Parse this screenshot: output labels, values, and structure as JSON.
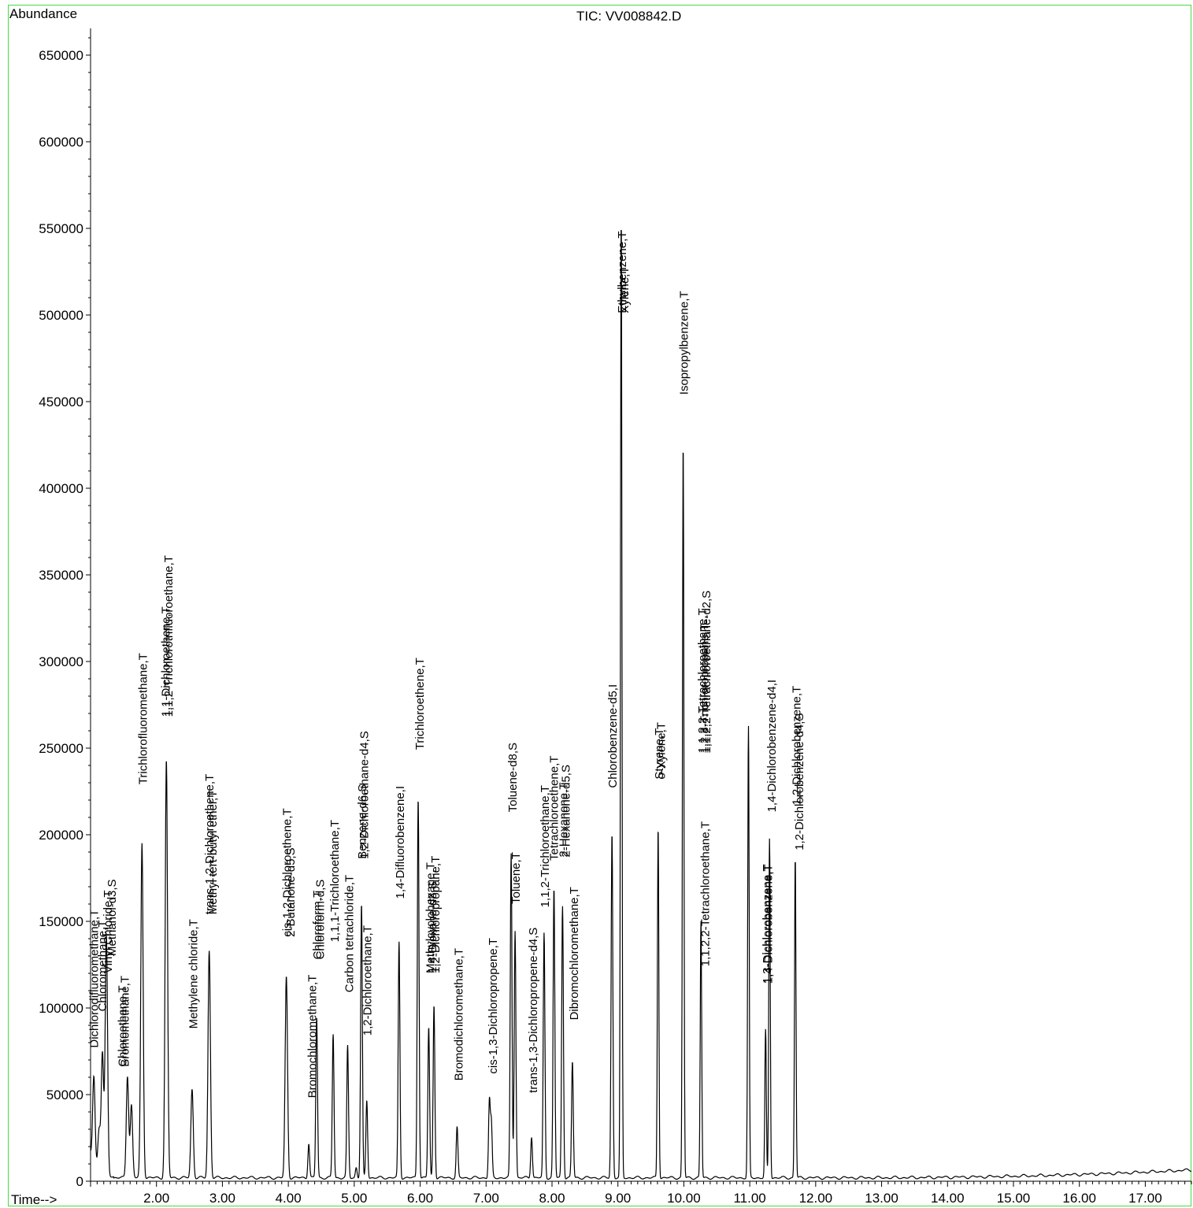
{
  "header": {
    "y_axis_label": "Abundance",
    "title": "TIC: VV008842.D",
    "x_axis_label": "Time-->"
  },
  "chart_data": {
    "type": "line",
    "title": "TIC: VV008842.D",
    "xlabel": "Time-->",
    "ylabel": "Abundance",
    "xlim": [
      1.0,
      17.7
    ],
    "ylim": [
      0,
      665000
    ],
    "grid": false,
    "legend": "none",
    "line_color": "#000000",
    "frame_color": "#44dd44",
    "y_ticks": [
      0,
      50000,
      100000,
      150000,
      200000,
      250000,
      300000,
      350000,
      400000,
      450000,
      500000,
      550000,
      600000,
      650000
    ],
    "y_tick_labels": [
      "0",
      "50000",
      "100000",
      "150000",
      "200000",
      "250000",
      "300000",
      "350000",
      "400000",
      "450000",
      "500000",
      "550000",
      "600000",
      "650000"
    ],
    "x_ticks": [
      2,
      3,
      4,
      5,
      6,
      7,
      8,
      9,
      10,
      11,
      12,
      13,
      14,
      15,
      16,
      17
    ],
    "x_tick_labels": [
      "2.00",
      "3.00",
      "4.00",
      "5.00",
      "6.00",
      "7.00",
      "8.00",
      "9.00",
      "10.00",
      "11.00",
      "12.00",
      "13.00",
      "14.00",
      "15.00",
      "16.00",
      "17.00"
    ],
    "peaks": [
      {
        "rt": 1.05,
        "height": 50000
      },
      {
        "rt": 1.13,
        "height": 23000
      },
      {
        "rt": 1.18,
        "height": 69000
      },
      {
        "rt": 1.24,
        "height": 137000
      },
      {
        "rt": 1.56,
        "height": 59000
      },
      {
        "rt": 1.62,
        "height": 42000
      },
      {
        "rt": 1.78,
        "height": 193000
      },
      {
        "rt": 2.15,
        "height": 241000
      },
      {
        "rt": 2.54,
        "height": 51000
      },
      {
        "rt": 2.8,
        "height": 131000
      },
      {
        "rt": 3.97,
        "height": 116000
      },
      {
        "rt": 4.31,
        "height": 20000
      },
      {
        "rt": 4.43,
        "height": 93000
      },
      {
        "rt": 4.68,
        "height": 83000
      },
      {
        "rt": 4.9,
        "height": 76000
      },
      {
        "rt": 5.03,
        "height": 6000
      },
      {
        "rt": 5.11,
        "height": 158000
      },
      {
        "rt": 5.19,
        "height": 45000
      },
      {
        "rt": 5.68,
        "height": 136000
      },
      {
        "rt": 5.97,
        "height": 220000
      },
      {
        "rt": 6.13,
        "height": 87000
      },
      {
        "rt": 6.21,
        "height": 100000
      },
      {
        "rt": 6.56,
        "height": 29000
      },
      {
        "rt": 7.05,
        "height": 44000
      },
      {
        "rt": 7.08,
        "height": 31000
      },
      {
        "rt": 7.38,
        "height": 187000
      },
      {
        "rt": 7.44,
        "height": 143000
      },
      {
        "rt": 7.69,
        "height": 24000
      },
      {
        "rt": 7.88,
        "height": 141000
      },
      {
        "rt": 8.03,
        "height": 167000
      },
      {
        "rt": 8.16,
        "height": 157000
      },
      {
        "rt": 8.31,
        "height": 67000
      },
      {
        "rt": 8.91,
        "height": 199000
      },
      {
        "rt": 9.05,
        "height": 555000
      },
      {
        "rt": 9.61,
        "height": 203000
      },
      {
        "rt": 9.99,
        "height": 425000
      },
      {
        "rt": 10.26,
        "height": 148000
      },
      {
        "rt": 10.98,
        "height": 260000
      },
      {
        "rt": 11.24,
        "height": 85000
      },
      {
        "rt": 11.3,
        "height": 196000
      },
      {
        "rt": 11.69,
        "height": 185000
      }
    ],
    "annotations": [
      {
        "rt": 1.04,
        "y": 77000,
        "text": "Dichlorodifluoromethane,T"
      },
      {
        "rt": 1.17,
        "y": 98000,
        "text": "Chloromethane,T"
      },
      {
        "rt": 1.25,
        "y": 120000,
        "text": "Vinyl Chloride,T"
      },
      {
        "rt": 1.31,
        "y": 130000,
        "text": "Methanol-d3,S"
      },
      {
        "rt": 1.47,
        "y": 66000,
        "text": "Chloroethane,T"
      },
      {
        "rt": 1.51,
        "y": 66000,
        "text": "Bromomethane,T"
      },
      {
        "rt": 1.78,
        "y": 229000,
        "text": "Trichlorofluoromethane,T"
      },
      {
        "rt": 2.13,
        "y": 268000,
        "text": "1,1-Dichloroethene,T"
      },
      {
        "rt": 2.17,
        "y": 268000,
        "text": "1,1,2-Trichlorotrifluoroethane,T"
      },
      {
        "rt": 2.55,
        "y": 88000,
        "text": "Methylene chloride,T"
      },
      {
        "rt": 2.79,
        "y": 154000,
        "text": "trans-1,2-Dichloroethene,T"
      },
      {
        "rt": 2.84,
        "y": 154000,
        "text": "Methyl tert-butyl ether,T"
      },
      {
        "rt": 3.97,
        "y": 141000,
        "text": "cis-1,2-Dichloroethene,T"
      },
      {
        "rt": 4.02,
        "y": 141000,
        "text": "2-Butanone-d5,S"
      },
      {
        "rt": 4.35,
        "y": 48000,
        "text": "Bromochloromethane,T"
      },
      {
        "rt": 4.43,
        "y": 128000,
        "text": "Chloroform,T"
      },
      {
        "rt": 4.47,
        "y": 128000,
        "text": "Chloroform-d,S"
      },
      {
        "rt": 4.69,
        "y": 138000,
        "text": "1,1,1-Trichloroethane,T"
      },
      {
        "rt": 4.91,
        "y": 109000,
        "text": "Carbon tetrachloride,T"
      },
      {
        "rt": 5.11,
        "y": 186000,
        "text": "Benzene-d6,S"
      },
      {
        "rt": 5.14,
        "y": 186000,
        "text": "1,2-Dichloroethane-d4,S"
      },
      {
        "rt": 5.19,
        "y": 84000,
        "text": "1,2-Dichloroethane,T"
      },
      {
        "rt": 5.68,
        "y": 163000,
        "text": "1,4-Difluorobenzene,I"
      },
      {
        "rt": 5.98,
        "y": 249000,
        "text": "Trichloroethene,T"
      },
      {
        "rt": 6.14,
        "y": 120000,
        "text": "Methylcyclohexane,T"
      },
      {
        "rt": 6.17,
        "y": 120000,
        "text": "1,4-Dioxane-d8,S"
      },
      {
        "rt": 6.22,
        "y": 120000,
        "text": "1,2-Dichloropropane,T"
      },
      {
        "rt": 6.57,
        "y": 58000,
        "text": "Bromodichloromethane,T"
      },
      {
        "rt": 7.09,
        "y": 62000,
        "text": "cis-1,3-Dichloropropene,T"
      },
      {
        "rt": 7.39,
        "y": 213000,
        "text": "Toluene-d8,S"
      },
      {
        "rt": 7.44,
        "y": 160000,
        "text": "Toluene,T"
      },
      {
        "rt": 7.7,
        "y": 51000,
        "text": "trans-1,3-Dichloropropene-d4,S"
      },
      {
        "rt": 7.88,
        "y": 158000,
        "text": "1,1,2-Trichloroethane,T"
      },
      {
        "rt": 8.02,
        "y": 185000,
        "text": "Tetrachloroethene,T"
      },
      {
        "rt": 8.16,
        "y": 187000,
        "text": "2-Hexanone,T"
      },
      {
        "rt": 8.2,
        "y": 187000,
        "text": "2-Hexanone-d5,S"
      },
      {
        "rt": 8.32,
        "y": 93000,
        "text": "Dibromochloromethane,T"
      },
      {
        "rt": 8.91,
        "y": 227000,
        "text": "Chlorobenzene-d5,I"
      },
      {
        "rt": 9.05,
        "y": 501000,
        "text": "Ethylbenzene,T"
      },
      {
        "rt": 9.09,
        "y": 501000,
        "text": "Xylene,T"
      },
      {
        "rt": 9.61,
        "y": 232000,
        "text": "Styrene,T"
      },
      {
        "rt": 9.64,
        "y": 232000,
        "text": "o-Xylene,T"
      },
      {
        "rt": 9.99,
        "y": 454000,
        "text": "Isopropylbenzene,T"
      },
      {
        "rt": 10.27,
        "y": 247000,
        "text": "1,1,2,2-Tetrachloroethane,T"
      },
      {
        "rt": 10.3,
        "y": 247000,
        "text": "1,2,3-Trichloropropane,T"
      },
      {
        "rt": 10.33,
        "y": 247000,
        "text": "1,1,2,2-Tetrachloroethane-d2,S"
      },
      {
        "rt": 10.31,
        "y": 124000,
        "text": "1,1,2,2-Tetrachloroethane,T"
      },
      {
        "rt": 11.25,
        "y": 114000,
        "text": "1,3-Dichlorobenzene,T"
      },
      {
        "rt": 11.27,
        "y": 114000,
        "text": "1,4-Dichlorobenzene,T"
      },
      {
        "rt": 11.32,
        "y": 213000,
        "text": "1,4-Dichlorobenzene-d4,I"
      },
      {
        "rt": 11.7,
        "y": 217000,
        "text": "1,2-Dichlorobenzene,T"
      },
      {
        "rt": 11.74,
        "y": 191000,
        "text": "1,2-Dichlorobenzene-d4,S"
      }
    ]
  }
}
